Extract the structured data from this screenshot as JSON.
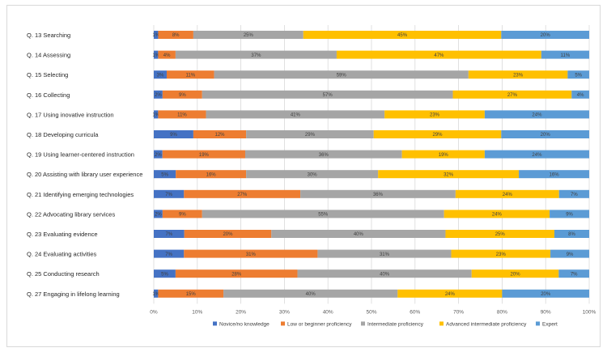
{
  "chart_data": {
    "type": "bar",
    "orientation": "horizontal",
    "stacked": "percent",
    "title": "",
    "xlabel": "",
    "ylabel": "",
    "xlim": [
      0,
      100
    ],
    "x_ticks": [
      "0%",
      "10%",
      "20%",
      "30%",
      "40%",
      "50%",
      "60%",
      "70%",
      "80%",
      "90%",
      "100%"
    ],
    "grid": true,
    "legend_position": "bottom",
    "categories": [
      "Q. 13 Searching",
      "Q. 14 Assessing",
      "Q. 15  Selecting",
      "Q. 16 Collecting",
      "Q. 17 Using inovative instruction",
      "Q. 18 Developing curricula",
      "Q. 19 Using learner-centered instruction",
      "Q. 20 Assisting with library user experience",
      "Q. 21 Identifying emerging technologies",
      "Q. 22 Advocating library services",
      "Q. 23 Evaluating evidence",
      "Q. 24 Evaluating activities",
      "Q. 25 Conducting research",
      "Q. 27 Engaging in lifelong learning"
    ],
    "series": [
      {
        "name": "Novice/no knowledge",
        "color": "#4472c4",
        "values": [
          1,
          1,
          3,
          2,
          1,
          9,
          2,
          5,
          7,
          2,
          7,
          7,
          5,
          1
        ],
        "labels": [
          "1%",
          "1%",
          "3%",
          "2%",
          "1%",
          "9%",
          "2%",
          "5%",
          "7%",
          "2%",
          "7%",
          "7%",
          "5%",
          "1%"
        ]
      },
      {
        "name": "Low or beginner proficiency",
        "color": "#ed7d31",
        "values": [
          8,
          4,
          11,
          9,
          11,
          12,
          19,
          16,
          27,
          9,
          20,
          31,
          28,
          15
        ],
        "labels": [
          "8%",
          "4%",
          "11%",
          "9%",
          "11%",
          "12%",
          "19%",
          "16%",
          "27%",
          "9%",
          "20%",
          "31%",
          "28%",
          "15%"
        ]
      },
      {
        "name": "Intermediate proficiency",
        "color": "#a5a5a5",
        "values": [
          25,
          37,
          59,
          57,
          41,
          29,
          36,
          30,
          36,
          55,
          40,
          31,
          40,
          40
        ],
        "labels": [
          "25%",
          "37%",
          "59%",
          "57%",
          "41%",
          "29%",
          "36%",
          "30%",
          "36%",
          "55%",
          "40%",
          "31%",
          "40%",
          "40%"
        ]
      },
      {
        "name": "Advanced intermediate proficiency",
        "color": "#ffc000",
        "values": [
          45,
          47,
          23,
          27,
          23,
          29,
          19,
          32,
          24,
          24,
          25,
          23,
          20,
          24
        ],
        "labels": [
          "45%",
          "47%",
          "23%",
          "27%",
          "23%",
          "29%",
          "19%",
          "32%",
          "24%",
          "24%",
          "25%",
          "23%",
          "20%",
          "24%"
        ]
      },
      {
        "name": "Expert",
        "color": "#5b9bd5",
        "values": [
          20,
          11,
          5,
          4,
          24,
          20,
          24,
          16,
          7,
          9,
          8,
          9,
          7,
          20
        ],
        "labels": [
          "20%",
          "11%",
          "5%",
          "4%",
          "24%",
          "20%",
          "24%",
          "16%",
          "7%",
          "9%",
          "8%",
          "9%",
          "7%",
          "20%"
        ]
      }
    ]
  }
}
